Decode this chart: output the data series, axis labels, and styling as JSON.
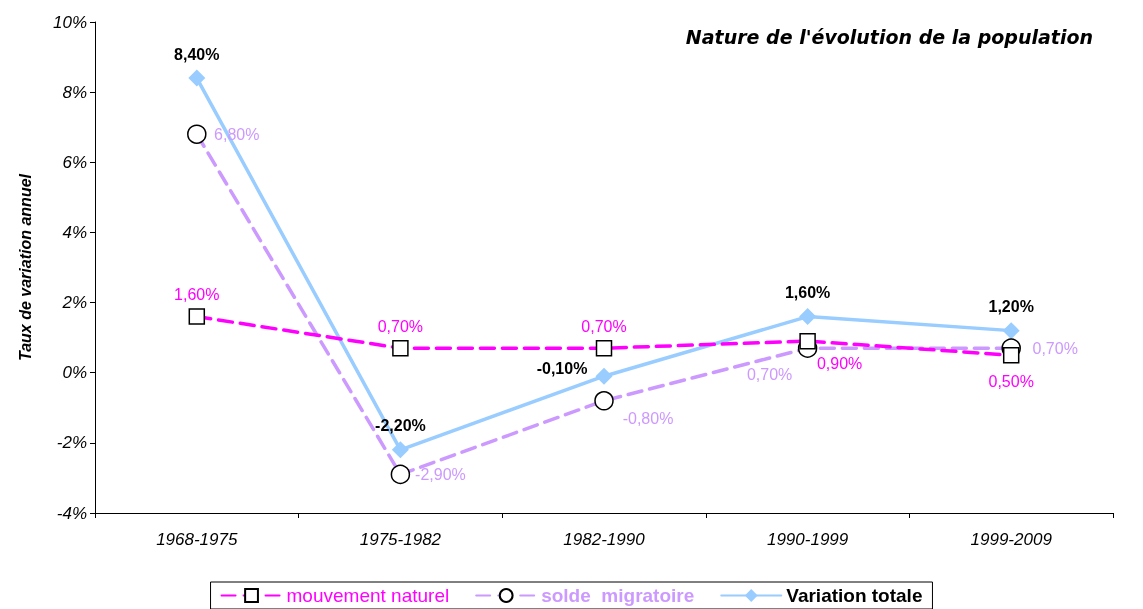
{
  "chart_data": {
    "type": "line",
    "title": "Nature de l'évolution de la population",
    "ylabel": "Taux de variation annuel",
    "categories": [
      "1968-1975",
      "1975-1982",
      "1982-1990",
      "1990-1999",
      "1999-2009"
    ],
    "series": [
      {
        "name": "mouvement naturel",
        "color": "#ff00ff",
        "values": [
          1.6,
          0.7,
          0.7,
          0.9,
          0.5
        ],
        "value_labels": [
          "1,60%",
          "0,70%",
          "0,70%",
          "0,90%",
          "0,50%"
        ],
        "marker": "square",
        "line_style": "dashed"
      },
      {
        "name": "solde  migratoire",
        "color": "#cc99ff",
        "values": [
          6.8,
          -2.9,
          -0.8,
          0.7,
          0.7
        ],
        "value_labels": [
          "6,80%",
          "-2,90%",
          "-0,80%",
          "0,70%",
          "0,70%"
        ],
        "marker": "circle",
        "line_style": "dashed"
      },
      {
        "name": "Variation totale",
        "color": "#99ccff",
        "values": [
          8.4,
          -2.2,
          -0.1,
          1.6,
          1.2
        ],
        "value_labels": [
          "8,40%",
          "-2,20%",
          "-0,10%",
          "1,60%",
          "1,20%"
        ],
        "marker": "diamond",
        "line_style": "solid"
      }
    ],
    "ylim": [
      -4,
      10
    ],
    "yticks": [
      {
        "value": -4,
        "label": "-4%"
      },
      {
        "value": -2,
        "label": "-2%"
      },
      {
        "value": 0,
        "label": "0%"
      },
      {
        "value": 2,
        "label": "2%"
      },
      {
        "value": 4,
        "label": "4%"
      },
      {
        "value": 6,
        "label": "6%"
      },
      {
        "value": 8,
        "label": "8%"
      },
      {
        "value": 10,
        "label": "10%"
      }
    ],
    "grid": false,
    "legend": "bottom"
  }
}
